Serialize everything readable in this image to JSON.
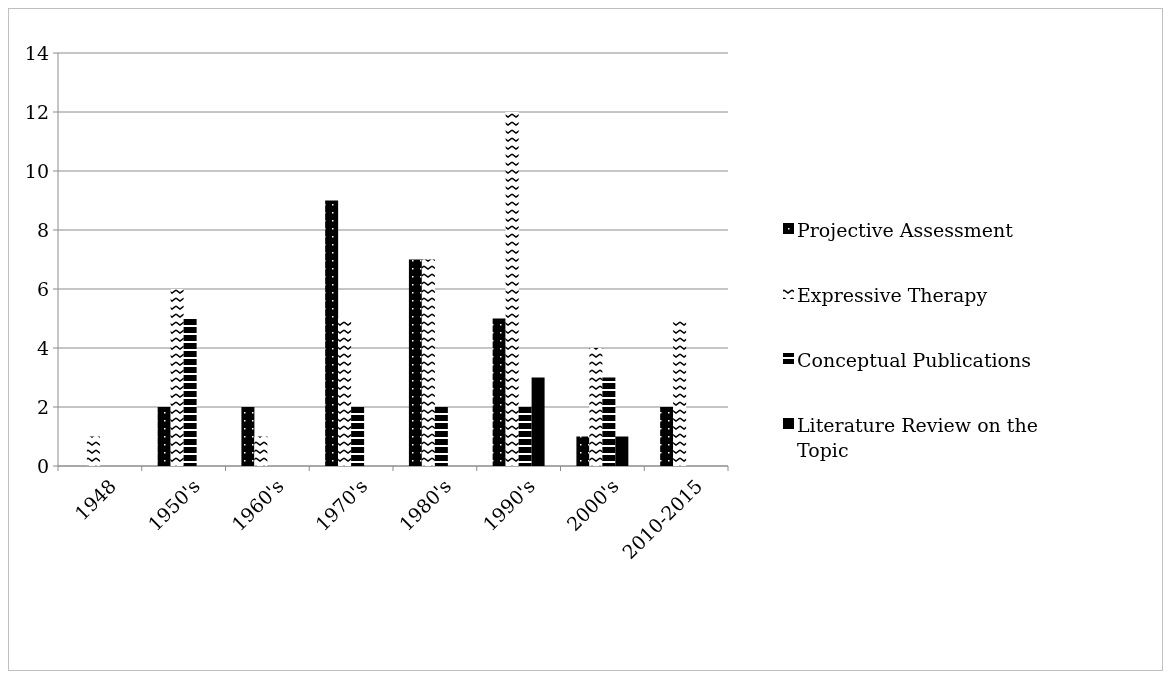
{
  "chart_data": {
    "type": "bar",
    "categories": [
      "1948",
      "1950's",
      "1960's",
      "1970's",
      "1980's",
      "1990's",
      "2000's",
      "2010-2015"
    ],
    "series": [
      {
        "name": "Projective Assessment",
        "color": "#000000",
        "values": [
          0,
          2,
          2,
          9,
          7,
          5,
          1,
          2
        ]
      },
      {
        "name": "Expressive Therapy",
        "color": "#000000",
        "values": [
          1,
          6,
          1,
          5,
          7,
          12,
          4,
          5
        ]
      },
      {
        "name": "Conceptual Publications",
        "color": "#000000",
        "values": [
          0,
          5,
          0,
          2,
          2,
          2,
          3,
          0
        ]
      },
      {
        "name": "Literature Review on the Topic",
        "color": "#000000",
        "values": [
          0,
          0,
          0,
          0,
          0,
          3,
          1,
          0
        ]
      }
    ],
    "ylim": [
      0,
      14
    ],
    "yticks": [
      0,
      2,
      4,
      6,
      8,
      10,
      12,
      14
    ],
    "grid": "y",
    "legend": "right"
  }
}
